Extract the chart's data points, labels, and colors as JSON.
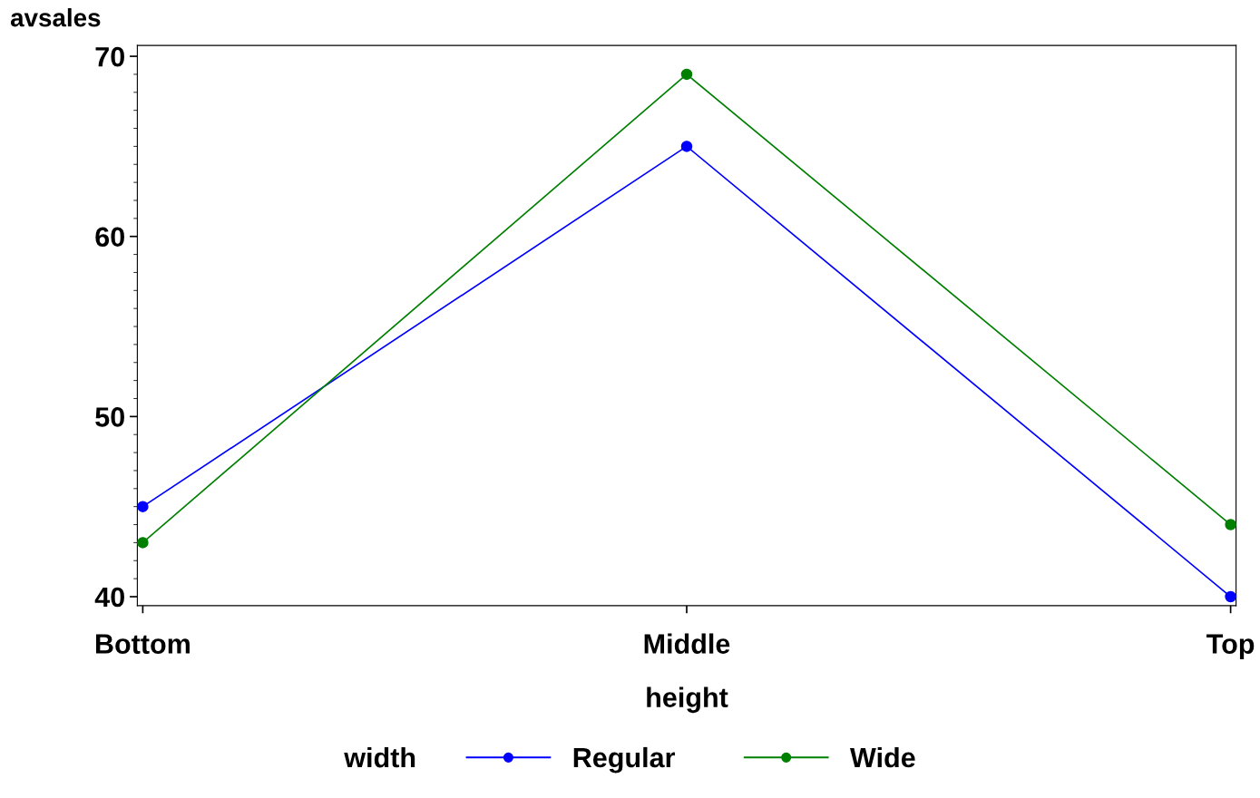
{
  "chart_data": {
    "type": "line",
    "ylabel": "avsales",
    "xlabel": "height",
    "legend_title": "width",
    "legend": "bottom",
    "categories": [
      "Bottom",
      "Middle",
      "Top"
    ],
    "series": [
      {
        "name": "Regular",
        "color": "#0000ff",
        "values": [
          45,
          65,
          40
        ]
      },
      {
        "name": "Wide",
        "color": "#008000",
        "values": [
          43,
          69,
          44
        ]
      }
    ],
    "ylim": [
      39.5,
      70.6
    ],
    "yticks": [
      40,
      50,
      60,
      70
    ],
    "marker": "circle",
    "line_style": "solid",
    "grid": false
  }
}
